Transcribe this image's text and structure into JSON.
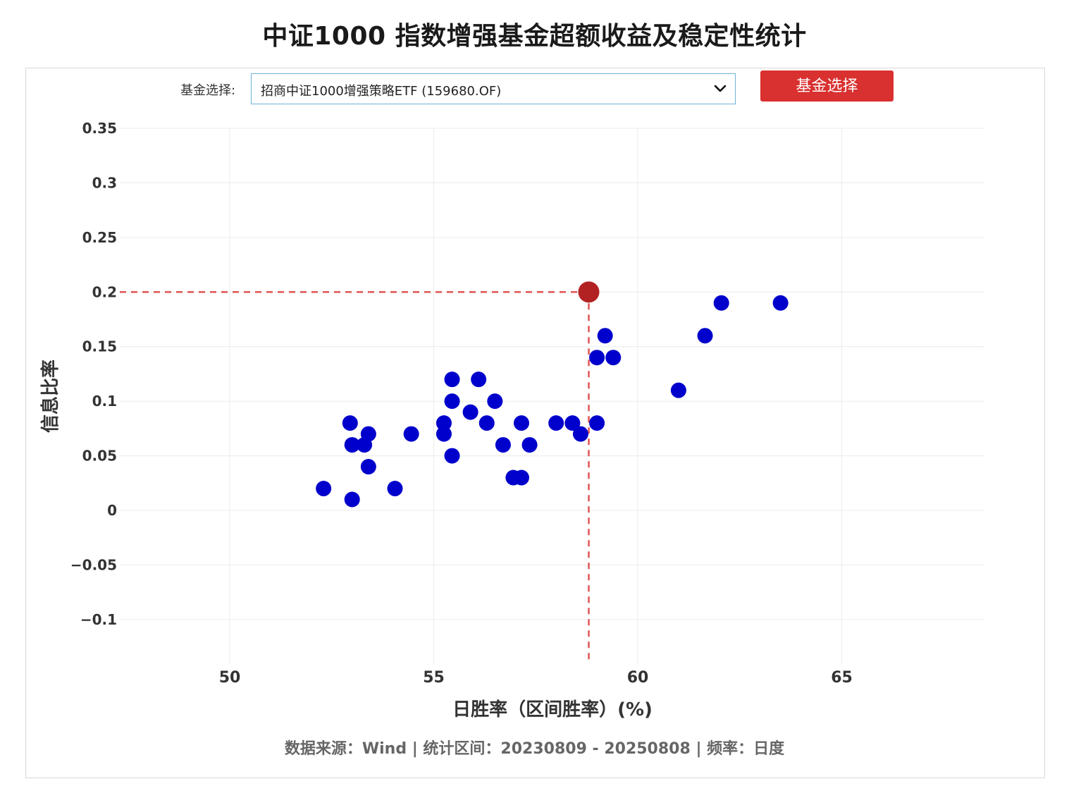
{
  "page": {
    "title": "中证1000 指数增强基金超额收益及稳定性统计"
  },
  "selector": {
    "label": "基金选择:",
    "selected": "招商中证1000增强策略ETF (159680.OF)",
    "button_label": "基金选择"
  },
  "colors": {
    "points": "#0000cc",
    "highlight": "#b22222",
    "guide": "#e05555",
    "button": "#d93030"
  },
  "icons": {
    "dropdown": "chevron-down-icon"
  },
  "footer": {
    "note": "数据来源：Wind  |  统计区间：20230809 - 20250808  |  频率：日度"
  },
  "chart_data": {
    "type": "scatter",
    "title": "",
    "xlabel": "日胜率（区间胜率）(%)",
    "ylabel": "信息比率",
    "xlim": [
      47.0,
      68.5
    ],
    "ylim": [
      -0.14,
      0.35
    ],
    "x_ticks": [
      50,
      55,
      60,
      65
    ],
    "y_ticks": [
      -0.1,
      -0.05,
      0,
      0.05,
      0.1,
      0.15,
      0.2,
      0.25,
      0.3,
      0.35
    ],
    "y_tick_labels": [
      "−0.1",
      "−0.05",
      "0",
      "0.05",
      "0.1",
      "0.15",
      "0.2",
      "0.25",
      "0.3",
      "0.35"
    ],
    "grid": true,
    "series": [
      {
        "points": [
          [
            52.3,
            0.02
          ],
          [
            53.0,
            0.01
          ],
          [
            52.95,
            0.08
          ],
          [
            53.0,
            0.06
          ],
          [
            53.3,
            0.06
          ],
          [
            53.4,
            0.07
          ],
          [
            53.4,
            0.04
          ],
          [
            54.05,
            0.02
          ],
          [
            54.45,
            0.07
          ],
          [
            55.25,
            0.08
          ],
          [
            55.25,
            0.07
          ],
          [
            55.45,
            0.12
          ],
          [
            55.45,
            0.1
          ],
          [
            55.45,
            0.05
          ],
          [
            55.9,
            0.09
          ],
          [
            56.1,
            0.12
          ],
          [
            56.3,
            0.08
          ],
          [
            56.5,
            0.1
          ],
          [
            56.7,
            0.06
          ],
          [
            56.95,
            0.03
          ],
          [
            57.15,
            0.03
          ],
          [
            57.15,
            0.08
          ],
          [
            57.35,
            0.06
          ],
          [
            58.0,
            0.08
          ],
          [
            58.4,
            0.08
          ],
          [
            58.6,
            0.07
          ],
          [
            59.0,
            0.08
          ],
          [
            59.0,
            0.14
          ],
          [
            59.2,
            0.16
          ],
          [
            59.4,
            0.14
          ],
          [
            61.0,
            0.11
          ],
          [
            61.65,
            0.16
          ],
          [
            62.05,
            0.19
          ],
          [
            63.5,
            0.19
          ]
        ]
      }
    ],
    "highlight": {
      "x": 58.8,
      "y": 0.2
    }
  }
}
